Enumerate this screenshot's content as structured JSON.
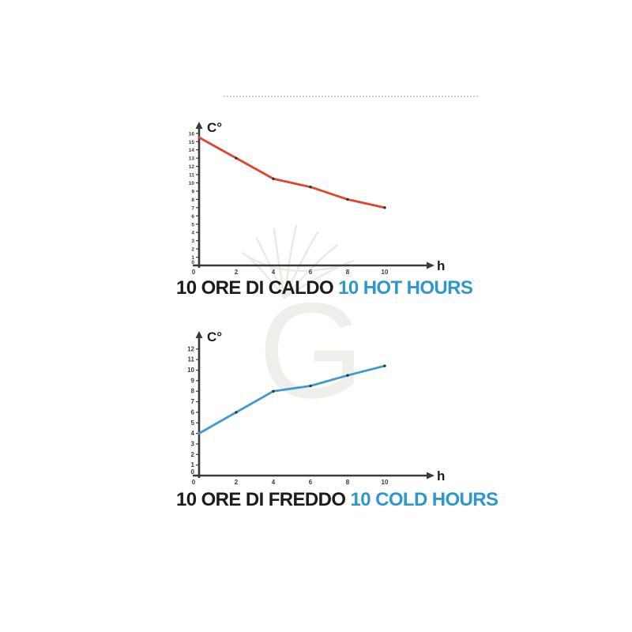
{
  "decor": {
    "watermark_letter": "G",
    "separator_style": "dotted"
  },
  "colors": {
    "background": "#ffffff",
    "axis": "#3a3a3a",
    "tick_text": "#3c3c3c",
    "caption_text": "#1c1c1a",
    "caption_accent": "#2e97cc",
    "hot_line": "#e2432c",
    "cold_line": "#3d9bcd",
    "point": "#333333",
    "separator": "#d6d0bc",
    "watermark_fill": "#efeeea",
    "watermark_stroke": "#ebeae3"
  },
  "chart_data": [
    {
      "type": "line",
      "title": "10 ORE DI CALDO 10 HOT HOURS",
      "title_primary": "10 ORE DI CALDO",
      "title_secondary": "10 HOT HOURS",
      "xlabel": "h",
      "ylabel": "C°",
      "x": [
        0,
        2,
        4,
        6,
        8,
        10
      ],
      "values": [
        15.5,
        13,
        10.5,
        9.5,
        8,
        7
      ],
      "xticks": [
        0,
        2,
        4,
        6,
        8,
        10
      ],
      "yticks": [
        0,
        1,
        2,
        3,
        4,
        5,
        6,
        7,
        8,
        9,
        10,
        11,
        12,
        13,
        14,
        15,
        16
      ],
      "xlim": [
        0,
        12.5
      ],
      "ylim": [
        0,
        17.2
      ],
      "grid": false,
      "legend": "none",
      "line_color": "#e2432c"
    },
    {
      "type": "line",
      "title": "10 ORE DI FREDDO 10 COLD HOURS",
      "title_primary": "10 ORE DI FREDDO",
      "title_secondary": "10 COLD HOURS",
      "xlabel": "h",
      "ylabel": "C°",
      "x": [
        0,
        2,
        4,
        6,
        8,
        10
      ],
      "values": [
        4,
        6,
        8,
        8.5,
        9.5,
        10.4
      ],
      "xticks": [
        0,
        2,
        4,
        6,
        8,
        10
      ],
      "yticks": [
        0,
        1,
        2,
        3,
        4,
        5,
        6,
        7,
        8,
        9,
        10,
        11,
        12
      ],
      "xlim": [
        0,
        12.5
      ],
      "ylim": [
        0,
        13.5
      ],
      "grid": false,
      "legend": "none",
      "line_color": "#3d9bcd"
    }
  ]
}
